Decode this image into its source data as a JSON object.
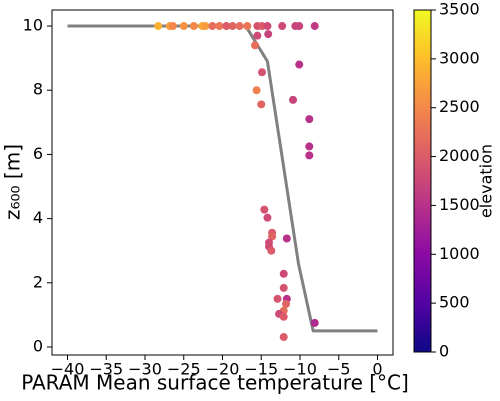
{
  "chart_data": {
    "type": "scatter",
    "xlabel": "PARAM Mean surface temperature [°C]",
    "ylabel": "z₆₀₀ [m]",
    "colorbar_label": "elevation",
    "xlim": [
      -42,
      2
    ],
    "ylim": [
      -0.25,
      10.5
    ],
    "xticks": [
      {
        "value": -40,
        "label": "−40"
      },
      {
        "value": -35,
        "label": "−35"
      },
      {
        "value": -30,
        "label": "−30"
      },
      {
        "value": -25,
        "label": "−25"
      },
      {
        "value": -20,
        "label": "−20"
      },
      {
        "value": -15,
        "label": "−15"
      },
      {
        "value": -10,
        "label": "−10"
      },
      {
        "value": -5,
        "label": "−5"
      },
      0
    ],
    "yticks": [
      0,
      2,
      4,
      6,
      8,
      10
    ],
    "clim": [
      0,
      3500
    ],
    "cticks": [
      0,
      500,
      1000,
      1500,
      2000,
      2500,
      3000,
      3500
    ],
    "colormap": [
      "#0d0887",
      "#5302a3",
      "#8b0aa5",
      "#b83289",
      "#db5c68",
      "#f48849",
      "#febd2a",
      "#f0f921"
    ],
    "line": {
      "color": "#808080",
      "x": [
        -40,
        -17,
        -14.2,
        -10.2,
        -8.3,
        0
      ],
      "y": [
        10,
        10,
        8.9,
        2.6,
        0.5,
        0.5
      ]
    },
    "points": {
      "x": [
        -28.3,
        -26.8,
        -26.4,
        -25,
        -23.7,
        -22.6,
        -22.2,
        -21.3,
        -20.4,
        -19.5,
        -18.7,
        -17.8,
        -16.8,
        -15.5,
        -14.9,
        -14.2,
        -12.3,
        -10.6,
        -10.1,
        -8.1,
        -15.8,
        -15.5,
        -14.1,
        -14.9,
        -15.6,
        -15,
        -10.1,
        -10.9,
        -8.8,
        -8.8,
        -8.8,
        -14.6,
        -14.2,
        -13.6,
        -13.6,
        -14,
        -14,
        -13.7,
        -11.7,
        -12.1,
        -12.1,
        -12.9,
        -11.7,
        -11.8,
        -12.1,
        -12.7,
        -12.1,
        -12.1,
        -8.1
      ],
      "y": [
        10,
        10,
        10,
        10,
        10,
        10,
        10,
        10,
        10,
        10,
        10,
        10,
        10,
        10,
        10,
        10,
        10,
        10,
        10,
        10,
        9.4,
        9.7,
        9.75,
        8.56,
        8.0,
        7.56,
        8.8,
        7.7,
        7.1,
        6.25,
        5.97,
        4.28,
        4.03,
        3.56,
        3.44,
        3.25,
        3.13,
        3.0,
        3.38,
        2.28,
        1.84,
        1.5,
        1.5,
        1.34,
        1.13,
        1.03,
        0.94,
        0.31,
        0.75
      ],
      "elevation": [
        2900,
        2700,
        2500,
        2600,
        2500,
        2800,
        2700,
        2200,
        2300,
        2000,
        2100,
        2200,
        2300,
        1900,
        2000,
        1800,
        1800,
        1700,
        1700,
        1600,
        2200,
        1800,
        1700,
        1900,
        2400,
        2100,
        1500,
        1700,
        1500,
        1500,
        1500,
        1900,
        1800,
        2000,
        2100,
        1800,
        1800,
        2000,
        1500,
        1800,
        1900,
        1900,
        1500,
        2100,
        2200,
        1800,
        2000,
        2000,
        1400
      ]
    }
  }
}
